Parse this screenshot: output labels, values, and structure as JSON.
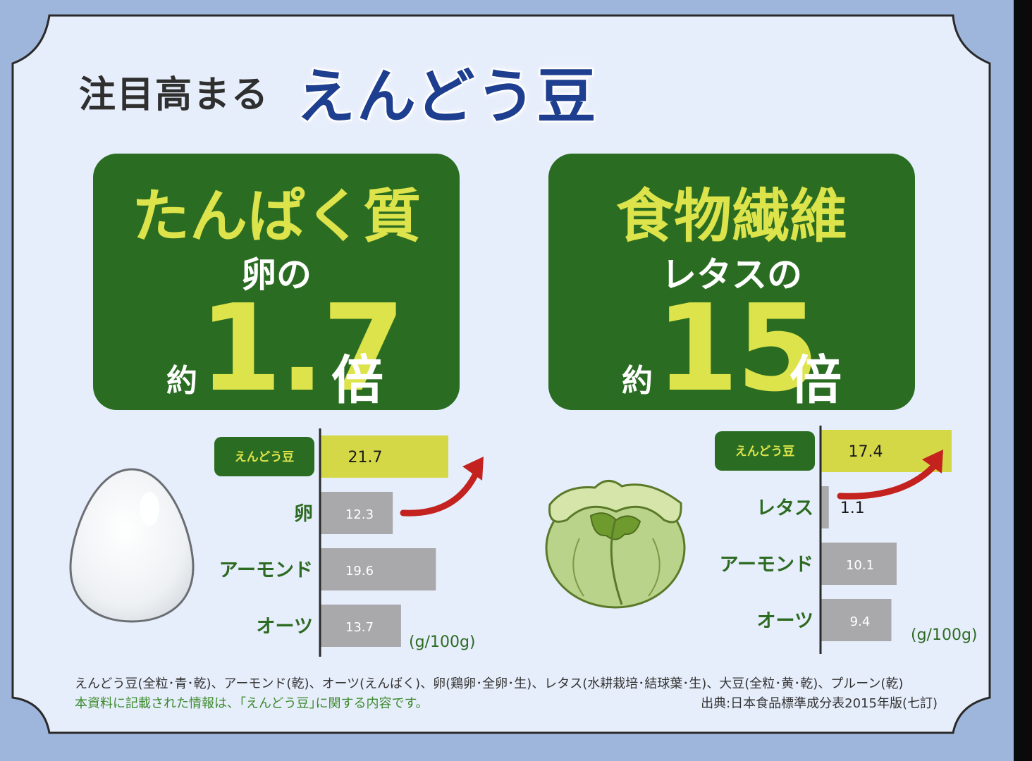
{
  "title": {
    "prefix": "注目高まる",
    "emphasis": "えんどう豆"
  },
  "panels": [
    {
      "heading": "たんぱく質",
      "subject": "卵の",
      "approx": "約",
      "multiplier": "1.7",
      "times": "倍"
    },
    {
      "heading": "食物繊維",
      "subject": "レタスの",
      "approx": "約",
      "multiplier": "15",
      "times": "倍"
    }
  ],
  "chart_data": [
    {
      "type": "bar",
      "orientation": "horizontal",
      "categories": [
        "えんどう豆",
        "卵",
        "アーモンド",
        "オーツ"
      ],
      "values": [
        21.7,
        12.3,
        19.6,
        13.7
      ],
      "value_labels": [
        "21.7",
        "12.3",
        "19.6",
        "13.7"
      ],
      "unit": "(g/100g)",
      "highlight": "えんどう豆",
      "xlim": [
        0,
        24
      ]
    },
    {
      "type": "bar",
      "orientation": "horizontal",
      "categories": [
        "えんどう豆",
        "レタス",
        "アーモンド",
        "オーツ"
      ],
      "values": [
        17.4,
        1.1,
        10.1,
        9.4
      ],
      "value_labels": [
        "17.4",
        "1.1",
        "10.1",
        "9.4"
      ],
      "unit": "(g/100g)",
      "highlight": "えんどう豆",
      "xlim": [
        0,
        20
      ]
    }
  ],
  "footnote": {
    "line1": "えんどう豆(全粒･青･乾)、アーモンド(乾)、オーツ(えんばく)、卵(鶏卵･全卵･生)、レタス(水耕栽培･結球葉･生)、大豆(全粒･黄･乾)、プルーン(乾)",
    "line2": "本資料に記載された情報は、｢えんどう豆｣に関する内容です。",
    "source": "出典:日本食品標準成分表2015年版(七訂)"
  },
  "colors": {
    "panel_green": "#2a6d22",
    "accent_yellow": "#dde34a",
    "highlight_bar": "#d4d847",
    "gray_bar": "#a9a9ac",
    "arrow_red": "#c4221f",
    "title_blue": "#1e3f8f"
  },
  "icons": [
    "egg-illustration",
    "lettuce-illustration",
    "red-arrow-icon"
  ]
}
